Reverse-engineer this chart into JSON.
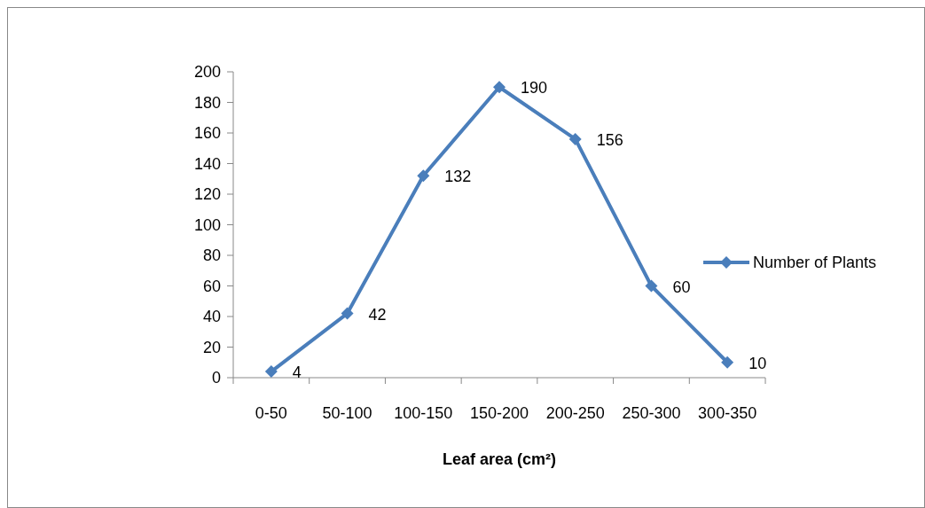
{
  "chart_data": {
    "type": "line",
    "xlabel": "Leaf area (cm²)",
    "categories": [
      "0-50",
      "50-100",
      "100-150",
      "150-200",
      "200-250",
      "250-300",
      "300-350"
    ],
    "series": [
      {
        "name": "Number of Plants",
        "color": "#4a7ebb",
        "values": [
          4,
          42,
          132,
          190,
          156,
          60,
          10
        ]
      }
    ],
    "ylim": [
      0,
      200
    ],
    "yticks": [
      0,
      20,
      40,
      60,
      80,
      100,
      120,
      140,
      160,
      180,
      200
    ],
    "data_labels": true,
    "legend": "right",
    "marker": "diamond",
    "grid": false
  }
}
